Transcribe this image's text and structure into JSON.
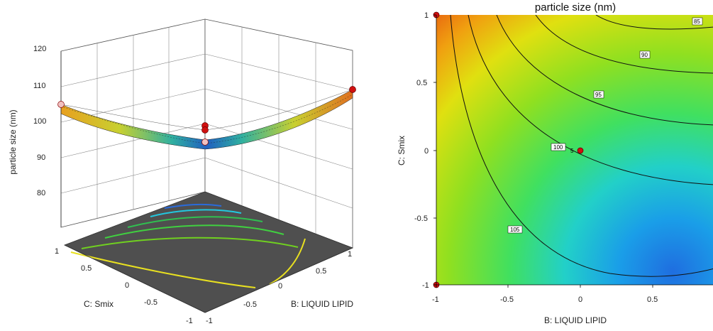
{
  "chart_data": [
    {
      "type": "surface",
      "zlabel": "particle size (nm)",
      "xlabel": "B: LIQUID LIPID",
      "ylabel": "C: Smix",
      "zlim": [
        80,
        120
      ],
      "z_ticks": [
        "80",
        "90",
        "100",
        "110",
        "120"
      ],
      "x_ticks": [
        "-1",
        "-0.5",
        "0",
        "0.5",
        "1"
      ],
      "y_ticks": [
        "-1",
        "-0.5",
        "0",
        "0.5",
        "1"
      ],
      "floor_contour_levels": [
        85,
        90,
        95,
        100,
        105
      ],
      "design_points": [
        {
          "x": -1,
          "y": 1,
          "z": 104.5
        },
        {
          "x": 0,
          "y": 0,
          "z": 100
        },
        {
          "x": 1,
          "y": -1,
          "z": 109
        }
      ]
    },
    {
      "type": "contour",
      "title": "particle size (nm)",
      "xlabel": "B: LIQUID LIPID",
      "ylabel": "C: Smix",
      "xlim": [
        -1,
        1
      ],
      "ylim": [
        -1,
        1
      ],
      "x_ticks": [
        "-1",
        "-0.5",
        "0",
        "0.5"
      ],
      "y_ticks": [
        "-1",
        "-0.5",
        "0",
        "0.5",
        "1"
      ],
      "contour_levels": [
        "85",
        "90",
        "95",
        "100",
        "105"
      ],
      "center_point": {
        "x": 0,
        "y": 0,
        "label": "5"
      },
      "design_points": [
        {
          "x": -1,
          "y": 1
        },
        {
          "x": -1,
          "y": -1
        }
      ]
    }
  ]
}
